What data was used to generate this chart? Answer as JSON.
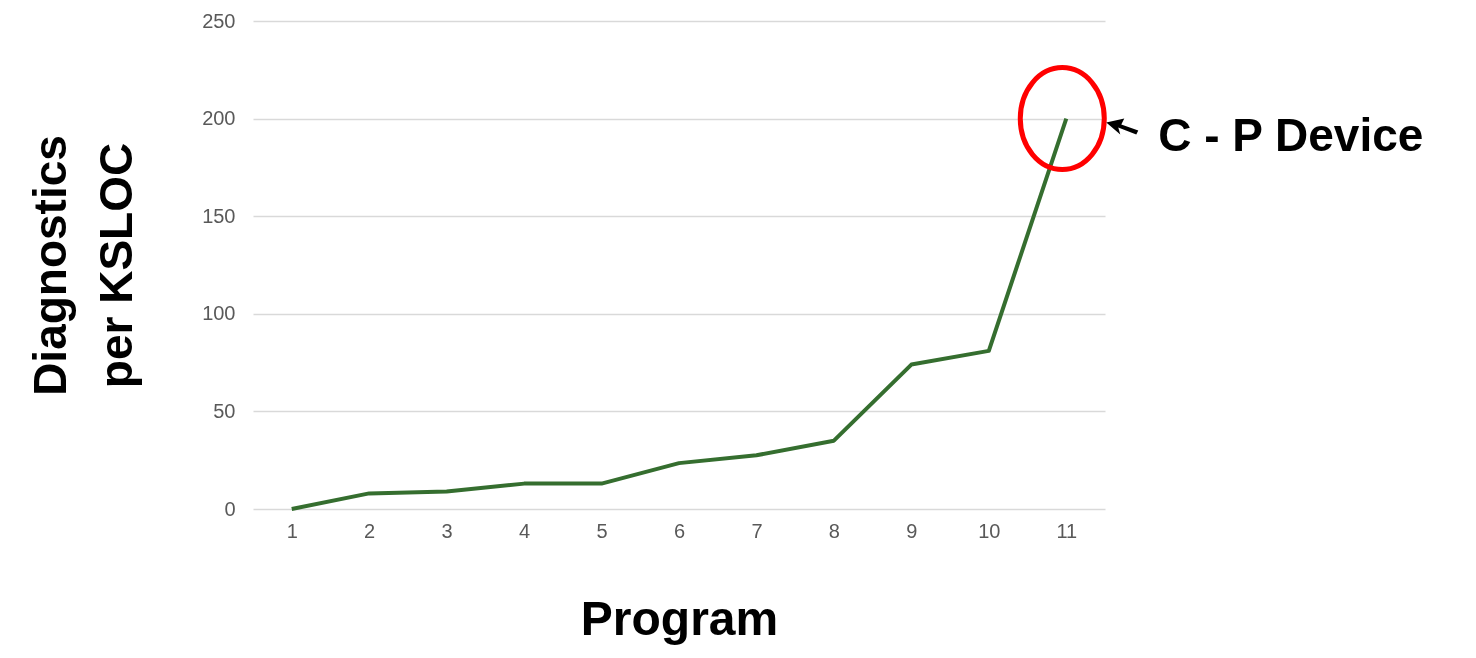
{
  "chart_data": {
    "type": "line",
    "xlabel": "Program",
    "ylabel": "Diagnostics per KSLOC",
    "categories": [
      "1",
      "2",
      "3",
      "4",
      "5",
      "6",
      "7",
      "8",
      "9",
      "10",
      "11"
    ],
    "series": [
      {
        "color": "#356e2f",
        "values": [
          0,
          8,
          9,
          13,
          13,
          23.5,
          27.5,
          35,
          74,
          81,
          200
        ]
      }
    ],
    "ylim": [
      0,
      250
    ],
    "yticks": [
      0,
      50,
      100,
      150,
      200,
      250
    ],
    "grid": "y",
    "legend": false,
    "marker": "none",
    "line_style": "solid",
    "annotations": [
      {
        "text": "C - P Device",
        "x": "11",
        "y": 200
      }
    ]
  }
}
